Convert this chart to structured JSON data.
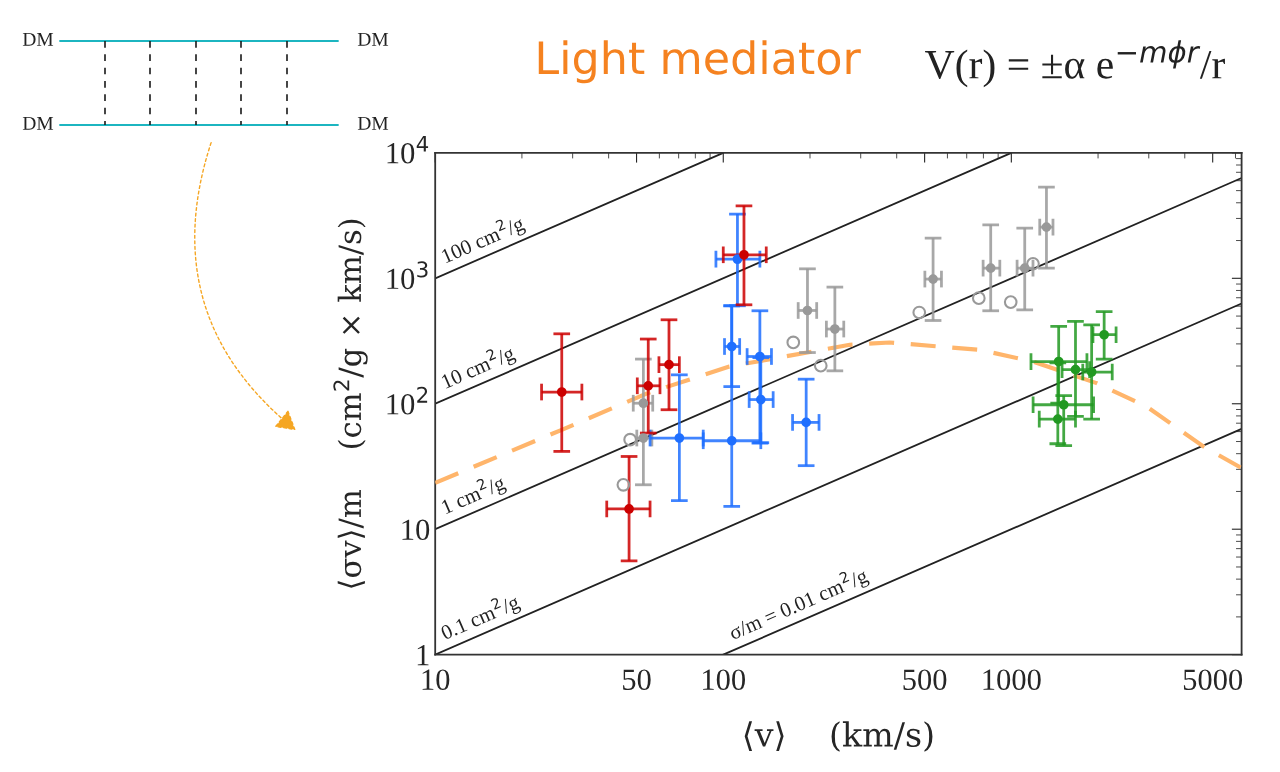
{
  "chart_data": {
    "type": "scatter",
    "title": "Light mediator",
    "xlabel": "⟨v⟩    (km/s)",
    "ylabel": "⟨σv⟩/m    (cm$^{2}$/g × km/s)",
    "annotations": [
      "DM",
      "DM",
      "DM",
      "DM",
      "V(r) = ±α e$^{−mϕr}$/r"
    ],
    "log": "xy",
    "xlim": [
      10,
      6300
    ],
    "ylim": [
      1,
      10000
    ],
    "xticks": [
      10,
      50,
      100,
      500,
      1000,
      5000
    ],
    "yticks": [
      1,
      10,
      {
        "value": 100,
        "label": "10$^{2}$"
      },
      {
        "value": 1000,
        "label": "10$^{3}$"
      },
      {
        "value": 10000,
        "label": "10$^{4}$"
      }
    ],
    "grid": false,
    "legend": false,
    "series": [
      {
        "type": "line",
        "marker": "none",
        "name": "100 cm$^{2}$/g",
        "color": "#222222",
        "line_style": "solid",
        "x": [
          10,
          100
        ],
        "values": [
          1000,
          10000
        ]
      },
      {
        "type": "line",
        "marker": "none",
        "name": "10 cm$^{2}$/g",
        "color": "#222222",
        "line_style": "solid",
        "x": [
          10,
          1000
        ],
        "values": [
          100,
          10000
        ]
      },
      {
        "type": "line",
        "marker": "none",
        "name": "1 cm$^{2}$/g",
        "color": "#222222",
        "line_style": "solid",
        "x": [
          10,
          6300
        ],
        "values": [
          10,
          6300
        ]
      },
      {
        "type": "line",
        "marker": "none",
        "name": "0.1 cm$^{2}$/g",
        "color": "#222222",
        "line_style": "solid",
        "x": [
          10,
          6300
        ],
        "values": [
          1,
          630
        ]
      },
      {
        "type": "line",
        "marker": "none",
        "name": "σ/m = 0.01 cm$^{2}$/g",
        "color": "#222222",
        "line_style": "solid",
        "x": [
          100,
          6300
        ],
        "values": [
          1,
          63
        ]
      },
      {
        "type": "line",
        "marker": "none",
        "color": "#ffb56b",
        "line_style": "dashed",
        "x": [
          10,
          27.5,
          54.9,
          105,
          275,
          378,
          778,
          1186,
          1976,
          2950,
          4640,
          6300
        ],
        "values": [
          23.4,
          62,
          122,
          198,
          295,
          308,
          269,
          217,
          146,
          95,
          45.7,
          30.7
        ]
      },
      {
        "marker": "circle",
        "color": "#999999",
        "x": [
          47.5,
          45,
          175,
          218,
          479,
          771,
          995,
          1189
        ],
        "values": [
          51.7,
          22.6,
          308,
          201,
          534,
          695,
          646,
          1306
        ]
      },
      {
        "marker": "circle",
        "color": "#999999",
        "x": [
          52.8,
          52.8,
          196,
          244,
          535,
          848,
          1113,
          1324
        ],
        "values": [
          101,
          53.3,
          554,
          394,
          986,
          1205,
          1205,
          2560
        ],
        "errors": [
          [
            22.6,
            227
          ],
          null,
          [
            256,
            1190
          ],
          [
            183,
            851
          ],
          [
            461,
            2090
          ],
          [
            551,
            2670
          ],
          [
            561,
            2510
          ],
          [
            1205,
            5330
          ]
        ],
        "xerrors": [
          [
            48.7,
            56.9
          ],
          [
            50.1,
            56.5
          ],
          [
            182,
            211
          ],
          [
            228,
            262
          ],
          [
            501,
            572
          ],
          [
            798,
            912
          ],
          [
            1047,
            1189
          ],
          [
            1255,
            1395
          ]
        ]
      },
      {
        "marker": "circle",
        "color": "#1f6fff",
        "x": [
          112,
          107,
          134,
          135,
          107,
          70.4,
          194
        ],
        "values": [
          1420,
          286,
          238,
          108,
          50.7,
          53.3,
          71
        ],
        "errors": [
          [
            604,
            3250
          ],
          [
            137,
            604
          ],
          [
            48.6,
            551
          ],
          [
            48.9,
            233
          ],
          [
            15.2,
            604
          ],
          [
            16.9,
            170
          ],
          [
            32.1,
            157
          ]
        ],
        "xerrors": [
          [
            94.3,
            134
          ],
          [
            101,
            114
          ],
          [
            121,
            147
          ],
          [
            123,
            149
          ],
          [
            85.2,
            135
          ],
          [
            55.7,
            85.2
          ],
          [
            174,
            215
          ]
        ]
      },
      {
        "marker": "circle",
        "color": "#cc0000",
        "x": [
          27.5,
          54.9,
          64.8,
          118,
          47.1
        ],
        "values": [
          124,
          139,
          205,
          1540,
          14.5
        ],
        "errors": [
          [
            41.7,
            361
          ],
          [
            58.4,
            328
          ],
          [
            89.6,
            467
          ],
          [
            615,
            3780
          ],
          [
            5.6,
            38
          ]
        ],
        "xerrors": [
          [
            23.4,
            32.3
          ],
          [
            50.3,
            60.3
          ],
          [
            59.8,
            70.4
          ],
          [
            100,
            141
          ],
          [
            39.4,
            55.7
          ]
        ]
      },
      {
        "marker": "circle",
        "color": "#229922",
        "x": [
          2100,
          1460,
          1670,
          1900,
          1520,
          1450
        ],
        "values": [
          355,
          217,
          187,
          179,
          98.2,
          75.5
        ],
        "errors": [
          [
            227,
            543
          ],
          [
            101,
            413
          ],
          [
            79.2,
            453
          ],
          [
            75.5,
            426
          ],
          [
            46.3,
            116
          ],
          [
            48,
            212
          ]
        ],
        "xerrors": [
          [
            1920,
            2310
          ],
          [
            1170,
            1830
          ],
          [
            1500,
            1870
          ],
          [
            1770,
            2240
          ],
          [
            1190,
            1930
          ],
          [
            1250,
            1670
          ]
        ]
      }
    ]
  }
}
